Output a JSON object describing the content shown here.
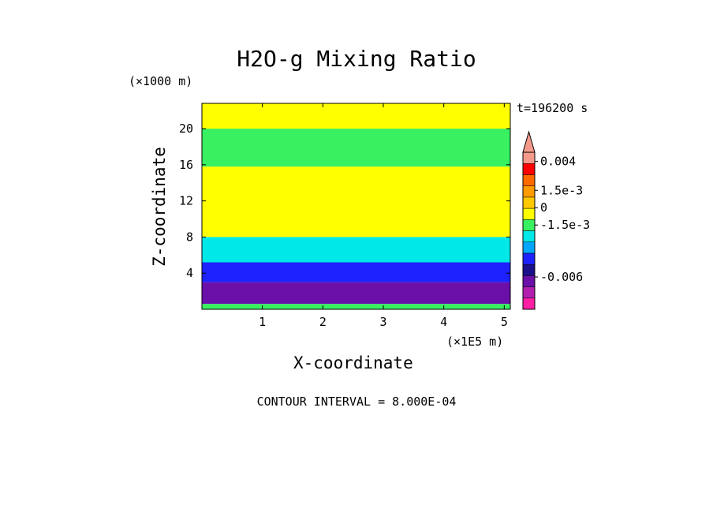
{
  "chart_data": {
    "type": "heatmap",
    "title": "H2O-g Mixing Ratio",
    "xlabel": "X-coordinate",
    "ylabel": "Z-coordinate",
    "x_units": "(×1E5 m)",
    "y_units": "(×1000 m)",
    "x_ticks": [
      "1",
      "2",
      "3",
      "4",
      "5"
    ],
    "x_tick_values": [
      1,
      2,
      3,
      4,
      5
    ],
    "y_ticks": [
      "4",
      "8",
      "12",
      "16",
      "20"
    ],
    "y_tick_values": [
      4,
      8,
      12,
      16,
      20
    ],
    "xlim": [
      0,
      5.1
    ],
    "ylim": [
      0,
      22.8
    ],
    "time_label": "t=196200 s",
    "contour_interval": "CONTOUR INTERVAL = 8.000E-04",
    "colorbar": {
      "labels": [
        "0.004",
        "1.5e-3",
        "0",
        "-1.5e-3",
        "-0.006"
      ],
      "label_values": [
        0.004,
        0.0015,
        0,
        -0.0015,
        -0.006
      ],
      "colors": [
        "#ff1fa3",
        "#b21faf",
        "#6a0fa8",
        "#1a108c",
        "#1e22ff",
        "#00a6ff",
        "#00e8e8",
        "#38f060",
        "#ffff00",
        "#ffc800",
        "#ff9a00",
        "#ff6a00",
        "#ff0000",
        "#f59a8a"
      ],
      "min_value": -0.0088,
      "max_value": 0.0048
    },
    "field_bands": [
      {
        "z_range": [
          0,
          0.6
        ],
        "color": "#38f060"
      },
      {
        "z_range": [
          0.6,
          3.0
        ],
        "color": "#6a0fa8"
      },
      {
        "z_range": [
          3.0,
          5.2
        ],
        "color": "#1e22ff"
      },
      {
        "z_range": [
          5.2,
          8.0
        ],
        "color": "#00e8e8"
      },
      {
        "z_range": [
          8.0,
          15.8
        ],
        "color": "#ffff00"
      },
      {
        "z_range": [
          15.8,
          20.0
        ],
        "color": "#38f060"
      },
      {
        "z_range": [
          20.0,
          22.8
        ],
        "color": "#ffff00"
      }
    ]
  }
}
